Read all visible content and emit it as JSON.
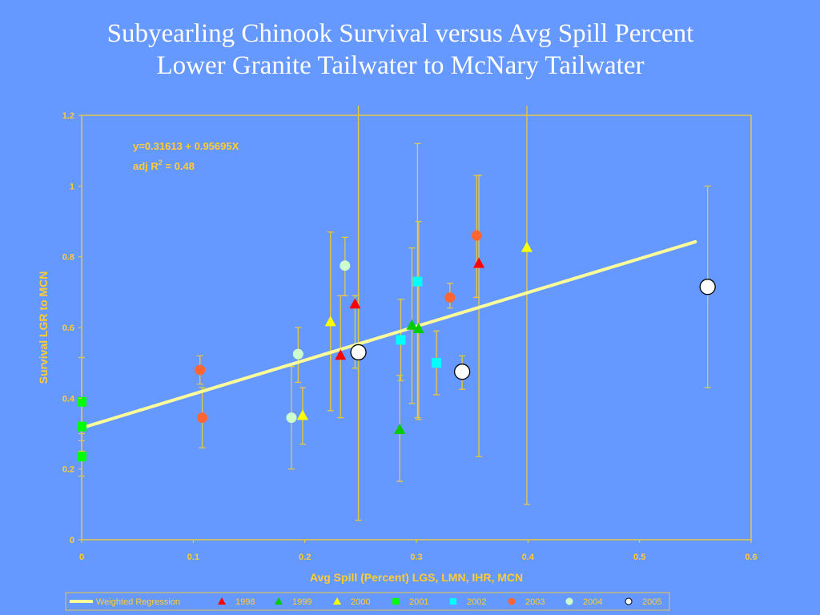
{
  "slide": {
    "title_line1": "Subyearling Chinook Survival versus Avg Spill Percent",
    "title_line2": "Lower Granite Tailwater to McNary Tailwater"
  },
  "colors": {
    "background": "#6699FF",
    "axis": "#E8C840",
    "label": "#FFCC33",
    "regression": "#FFFF99"
  },
  "chart_data": {
    "type": "scatter",
    "xlabel": "Avg Spill (Percent) LGS, LMN, IHR, MCN",
    "ylabel": "Survival LGR to MCN",
    "xlim": [
      0,
      0.6
    ],
    "ylim": [
      0,
      1.2
    ],
    "xticks": [
      "0",
      "0.1",
      "0.2",
      "0.3",
      "0.4",
      "0.5",
      "0.6"
    ],
    "yticks": [
      "0",
      "0.2",
      "0.4",
      "0.6",
      "0.8",
      "1",
      "1.2"
    ],
    "grid": false,
    "legend_position": "bottom",
    "annotation_line1": "y=0.31613 + 0.95695X",
    "annotation_line2_prefix": "adj R",
    "annotation_line2_sup": "2",
    "annotation_line2_suffix": " = 0.48",
    "regression": {
      "name": "Weighted Regression",
      "intercept": 0.31613,
      "slope": 0.95695,
      "x_range": [
        0,
        0.55
      ],
      "color": "#FFFF99"
    },
    "series": [
      {
        "name": "1998",
        "marker": "triangle",
        "color": "#FF0000",
        "points": [
          {
            "x": 0.232,
            "y": 0.52,
            "lo": 0.345,
            "hi": 0.69
          },
          {
            "x": 0.245,
            "y": 0.665,
            "lo": 0.485,
            "hi": 0.69
          },
          {
            "x": 0.356,
            "y": 0.78,
            "lo": 0.235,
            "hi": 1.03
          }
        ]
      },
      {
        "name": "1999",
        "marker": "triangle",
        "color": "#00CC00",
        "points": [
          {
            "x": 0.285,
            "y": 0.31,
            "lo": 0.165,
            "hi": 0.465
          },
          {
            "x": 0.296,
            "y": 0.605,
            "lo": 0.385,
            "hi": 0.825
          },
          {
            "x": 0.302,
            "y": 0.595,
            "lo": 0.34,
            "hi": 0.9
          }
        ]
      },
      {
        "name": "2000",
        "marker": "triangle",
        "color": "#FFFF00",
        "points": [
          {
            "x": 0.198,
            "y": 0.35,
            "lo": 0.27,
            "hi": 0.43
          },
          {
            "x": 0.223,
            "y": 0.615,
            "lo": 0.365,
            "hi": 0.87
          },
          {
            "x": 0.399,
            "y": 0.825,
            "lo": 0.1,
            "hi": 1.27
          }
        ]
      },
      {
        "name": "2001",
        "marker": "square",
        "color": "#00FF00",
        "points": [
          {
            "x": 0.0,
            "y": 0.39,
            "lo": 0.28,
            "hi": 0.515
          },
          {
            "x": 0.0,
            "y": 0.32,
            "lo": 0.25,
            "hi": 0.395
          },
          {
            "x": 0.0,
            "y": 0.235,
            "lo": 0.18,
            "hi": 0.3
          }
        ]
      },
      {
        "name": "2002",
        "marker": "square",
        "color": "#00FFFF",
        "points": [
          {
            "x": 0.286,
            "y": 0.565,
            "lo": 0.45,
            "hi": 0.68
          },
          {
            "x": 0.301,
            "y": 0.73,
            "lo": 0.345,
            "hi": 1.12
          },
          {
            "x": 0.318,
            "y": 0.5,
            "lo": 0.41,
            "hi": 0.59
          }
        ]
      },
      {
        "name": "2003",
        "marker": "circle",
        "color": "#FF6633",
        "points": [
          {
            "x": 0.106,
            "y": 0.48,
            "lo": 0.44,
            "hi": 0.52
          },
          {
            "x": 0.108,
            "y": 0.345,
            "lo": 0.26,
            "hi": 0.43
          },
          {
            "x": 0.33,
            "y": 0.685,
            "lo": 0.655,
            "hi": 0.725
          },
          {
            "x": 0.354,
            "y": 0.86,
            "lo": 0.685,
            "hi": 1.03
          }
        ]
      },
      {
        "name": "2004",
        "marker": "circle",
        "color": "#CCFFCC",
        "points": [
          {
            "x": 0.188,
            "y": 0.345,
            "lo": 0.2,
            "hi": 0.49
          },
          {
            "x": 0.194,
            "y": 0.525,
            "lo": 0.445,
            "hi": 0.6
          },
          {
            "x": 0.236,
            "y": 0.775,
            "lo": 0.69,
            "hi": 0.855
          }
        ]
      },
      {
        "name": "2005",
        "marker": "circle-large",
        "color": "#FFFFFF",
        "points": [
          {
            "x": 0.248,
            "y": 0.53,
            "lo": 0.055,
            "hi": 1.29
          },
          {
            "x": 0.341,
            "y": 0.475,
            "lo": 0.425,
            "hi": 0.52
          },
          {
            "x": 0.561,
            "y": 0.715,
            "lo": 0.43,
            "hi": 1.0
          }
        ]
      }
    ]
  }
}
